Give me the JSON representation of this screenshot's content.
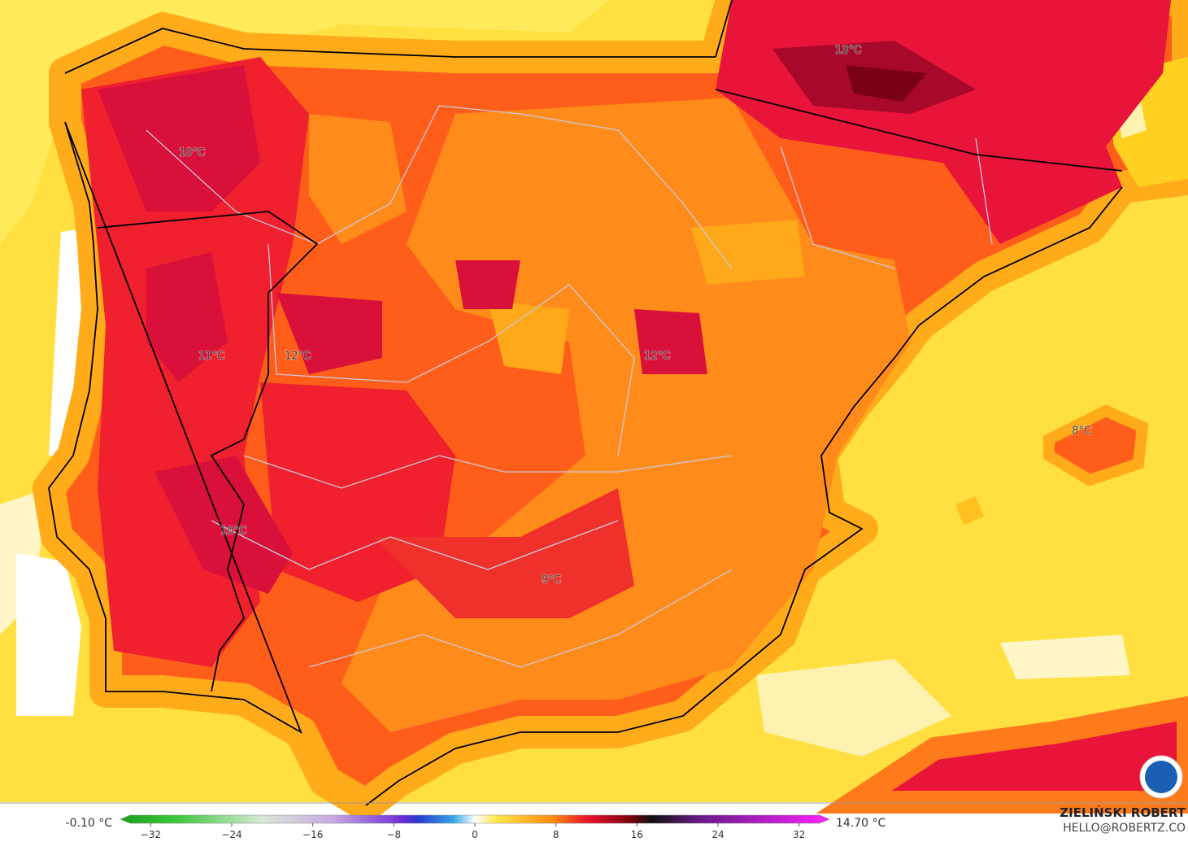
{
  "map_labels": [
    "13°C",
    "10°C",
    "11°C",
    "12°C",
    "12°C",
    "8°C",
    "10°C",
    "9°C"
  ],
  "colorbar": {
    "min_label": "-0.10 °C",
    "max_label": "14.70 °C",
    "lim": [
      -35,
      35
    ],
    "ticks": [
      {
        "value": -32,
        "label": "−32"
      },
      {
        "value": -24,
        "label": "−24"
      },
      {
        "value": -16,
        "label": "−16"
      },
      {
        "value": -8,
        "label": "−8"
      },
      0,
      8,
      16,
      24,
      32
    ]
  },
  "credit": {
    "name": "ZIELIŃSKI ROBERT",
    "email": "HELLO@ROBERTZ.CO"
  }
}
